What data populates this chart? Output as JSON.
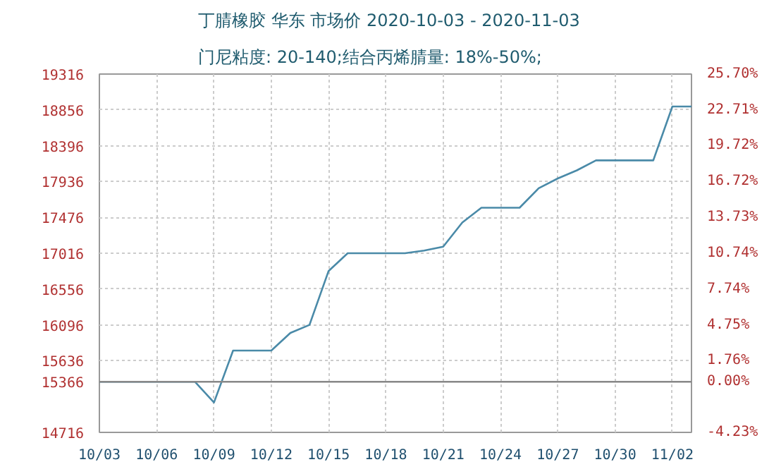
{
  "chart_data": {
    "type": "line",
    "title": "丁腈橡胶 华东 市场价 2020-10-03 - 2020-11-03",
    "subtitle": "门尼粘度: 20-140;结合丙烯腈量: 18%-50%;",
    "x": [
      "2020-10-03",
      "2020-10-04",
      "2020-10-05",
      "2020-10-06",
      "2020-10-07",
      "2020-10-08",
      "2020-10-09",
      "2020-10-10",
      "2020-10-11",
      "2020-10-12",
      "2020-10-13",
      "2020-10-14",
      "2020-10-15",
      "2020-10-16",
      "2020-10-17",
      "2020-10-18",
      "2020-10-19",
      "2020-10-20",
      "2020-10-21",
      "2020-10-22",
      "2020-10-23",
      "2020-10-24",
      "2020-10-25",
      "2020-10-26",
      "2020-10-27",
      "2020-10-28",
      "2020-10-29",
      "2020-10-30",
      "2020-10-31",
      "2020-11-01",
      "2020-11-02",
      "2020-11-03"
    ],
    "series": [
      {
        "color": "#4a8aa8",
        "values": [
          15366,
          15366,
          15366,
          15366,
          15366,
          15366,
          15100,
          15766,
          15766,
          15766,
          15993,
          16096,
          16788,
          17016,
          17016,
          17016,
          17016,
          17050,
          17100,
          17410,
          17600,
          17600,
          17600,
          17851,
          17976,
          18080,
          18208,
          18208,
          18208,
          18208,
          18900,
          18900
        ]
      }
    ],
    "xlim": [
      "2020-10-03",
      "2020-11-03"
    ],
    "xticks": [
      {
        "value": "2020-10-03",
        "label": "10/03"
      },
      {
        "value": "2020-10-06",
        "label": "10/06"
      },
      {
        "value": "2020-10-09",
        "label": "10/09"
      },
      {
        "value": "2020-10-12",
        "label": "10/12"
      },
      {
        "value": "2020-10-15",
        "label": "10/15"
      },
      {
        "value": "2020-10-18",
        "label": "10/18"
      },
      {
        "value": "2020-10-21",
        "label": "10/21"
      },
      {
        "value": "2020-10-24",
        "label": "10/24"
      },
      {
        "value": "2020-10-27",
        "label": "10/27"
      },
      {
        "value": "2020-10-30",
        "label": "10/30"
      },
      {
        "value": "2020-11-02",
        "label": "11/02"
      }
    ],
    "ylim": [
      14716,
      19316
    ],
    "yticks": [
      14716,
      15366,
      15636,
      16096,
      16556,
      17016,
      17476,
      17936,
      18396,
      18856,
      19316
    ],
    "y2lim": [
      -4.23,
      25.7
    ],
    "y2ticks": [
      {
        "value": -4.23,
        "label": "-4.23%"
      },
      {
        "value": 0,
        "label": "0.00%"
      },
      {
        "value": 1.76,
        "label": "1.76%"
      },
      {
        "value": 4.75,
        "label": "4.75%"
      },
      {
        "value": 7.74,
        "label": "7.74%"
      },
      {
        "value": 10.74,
        "label": "10.74%"
      },
      {
        "value": 13.73,
        "label": "13.73%"
      },
      {
        "value": 16.72,
        "label": "16.72%"
      },
      {
        "value": 19.72,
        "label": "19.72%"
      },
      {
        "value": 22.71,
        "label": "22.71%"
      },
      {
        "value": 25.7,
        "label": "25.70%"
      }
    ],
    "ref_lines": [
      {
        "axis": "y",
        "value": 15366,
        "color": "#888888"
      }
    ],
    "grid": true,
    "line_style": "solid"
  }
}
